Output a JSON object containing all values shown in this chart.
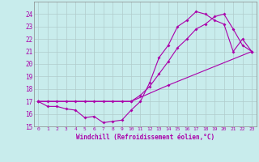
{
  "xlabel": "Windchill (Refroidissement éolien,°C)",
  "background_color": "#c8ecec",
  "grid_color": "#b0cccc",
  "line_color": "#aa00aa",
  "xlim": [
    -0.5,
    23.5
  ],
  "ylim": [
    15,
    25
  ],
  "yticks": [
    15,
    16,
    17,
    18,
    19,
    20,
    21,
    22,
    23,
    24
  ],
  "xticks": [
    0,
    1,
    2,
    3,
    4,
    5,
    6,
    7,
    8,
    9,
    10,
    11,
    12,
    13,
    14,
    15,
    16,
    17,
    18,
    19,
    20,
    21,
    22,
    23
  ],
  "series1_x": [
    0,
    1,
    2,
    3,
    4,
    5,
    6,
    7,
    8,
    9,
    10,
    11,
    12,
    13,
    14,
    15,
    16,
    17,
    18,
    19,
    20,
    21,
    22,
    23
  ],
  "series1_y": [
    17.0,
    16.6,
    16.6,
    16.4,
    16.3,
    15.7,
    15.8,
    15.3,
    15.4,
    15.5,
    16.3,
    17.0,
    18.5,
    20.5,
    21.5,
    23.0,
    23.5,
    24.2,
    24.0,
    23.5,
    23.2,
    21.0,
    22.0,
    21.0
  ],
  "series2_x": [
    0,
    1,
    2,
    3,
    4,
    5,
    6,
    7,
    8,
    9,
    10,
    11,
    12,
    13,
    14,
    15,
    16,
    17,
    18,
    19,
    20,
    21,
    22,
    23
  ],
  "series2_y": [
    17.0,
    17.0,
    17.0,
    17.0,
    17.0,
    17.0,
    17.0,
    17.0,
    17.0,
    17.0,
    17.0,
    17.5,
    18.2,
    19.2,
    20.2,
    21.3,
    22.0,
    22.8,
    23.2,
    23.8,
    24.0,
    22.8,
    21.5,
    21.0
  ],
  "series3_x": [
    0,
    10,
    14,
    23
  ],
  "series3_y": [
    17.0,
    17.0,
    18.3,
    21.0
  ]
}
